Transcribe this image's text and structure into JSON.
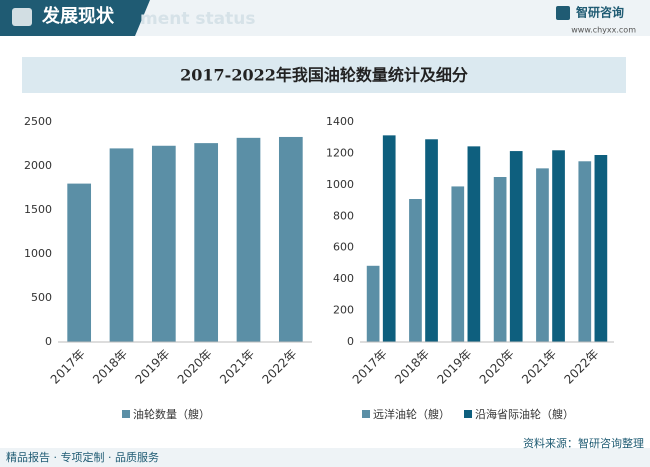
{
  "header": {
    "title": "发展现状",
    "watermark": "ment status",
    "logo": "智研咨询",
    "url": "www.chyxx.com"
  },
  "main_title": "2017-2022年我国油轮数量统计及细分",
  "footer": {
    "left": "精品报告 · 专项定制 · 品质服务",
    "right": "资料来源：智研咨询整理"
  },
  "chart_data": [
    {
      "type": "bar",
      "categories": [
        "2017年",
        "2018年",
        "2019年",
        "2020年",
        "2021年",
        "2022年"
      ],
      "series": [
        {
          "name": "油轮数量（艘）",
          "color": "#5b8fa6",
          "values": [
            1800,
            2200,
            2230,
            2260,
            2320,
            2330
          ]
        }
      ],
      "ylim": [
        0,
        2500
      ],
      "yticks": [
        0,
        500,
        1000,
        1500,
        2000,
        2500
      ]
    },
    {
      "type": "bar",
      "categories": [
        "2017年",
        "2018年",
        "2019年",
        "2020年",
        "2021年",
        "2022年"
      ],
      "series": [
        {
          "name": "远洋油轮（艘）",
          "color": "#5b8fa6",
          "values": [
            485,
            910,
            990,
            1050,
            1105,
            1150
          ]
        },
        {
          "name": "沿海省际油轮（艘）",
          "color": "#0e5f7e",
          "values": [
            1315,
            1290,
            1245,
            1215,
            1220,
            1190
          ]
        }
      ],
      "ylim": [
        0,
        1400
      ],
      "yticks": [
        0,
        200,
        400,
        600,
        800,
        1000,
        1200,
        1400
      ]
    }
  ]
}
